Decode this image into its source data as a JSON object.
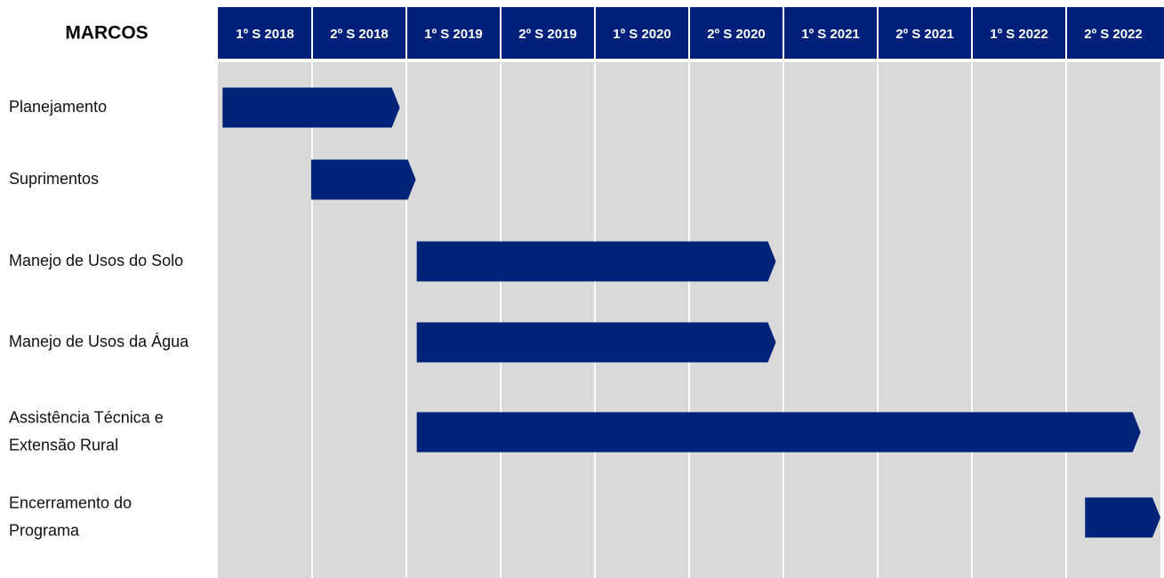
{
  "chart_data": {
    "type": "gantt",
    "title": "MARCOS",
    "categories": [
      "1º S 2018",
      "2º S 2018",
      "1º S 2019",
      "2º S 2019",
      "1º S 2020",
      "2º S 2020",
      "1º S 2021",
      "2º S 2021",
      "1º S 2022",
      "2º S 2022"
    ],
    "color": "#00237a",
    "tasks": [
      {
        "label": [
          "Planejamento"
        ],
        "start": 0.05,
        "end": 1.93
      },
      {
        "label": [
          "Suprimentos"
        ],
        "start": 0.99,
        "end": 2.1
      },
      {
        "label": [
          "Manejo de Usos do Solo"
        ],
        "start": 2.11,
        "end": 5.92
      },
      {
        "label": [
          "Manejo de Usos da Água"
        ],
        "start": 2.11,
        "end": 5.92
      },
      {
        "label": [
          "Assistência Técnica e",
          "Extensão Rural"
        ],
        "start": 2.11,
        "end": 9.79
      },
      {
        "label": [
          "Encerramento do",
          "Programa"
        ],
        "start": 9.2,
        "end": 10.0
      }
    ]
  }
}
